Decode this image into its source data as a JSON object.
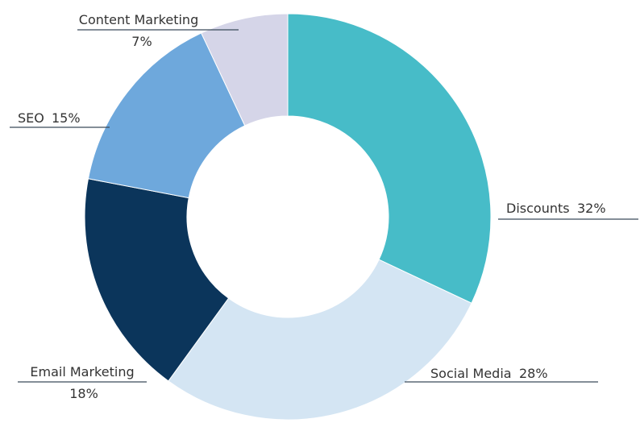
{
  "chart_data": {
    "type": "pie",
    "variant": "donut",
    "title": "",
    "slices": [
      {
        "label": "Discounts",
        "value": 32,
        "value_text": "32%",
        "color": "#47bcc8"
      },
      {
        "label": "Social Media",
        "value": 28,
        "value_text": "28%",
        "color": "#d4e5f3"
      },
      {
        "label": "Email Marketing",
        "value": 18,
        "value_text": "18%",
        "color": "#0b355b"
      },
      {
        "label": "SEO",
        "value": 15,
        "value_text": "15%",
        "color": "#6ea8dc"
      },
      {
        "label": "Content Marketing",
        "value": 7,
        "value_text": "7%",
        "color": "#d5d5e8"
      }
    ],
    "legend": "none"
  }
}
